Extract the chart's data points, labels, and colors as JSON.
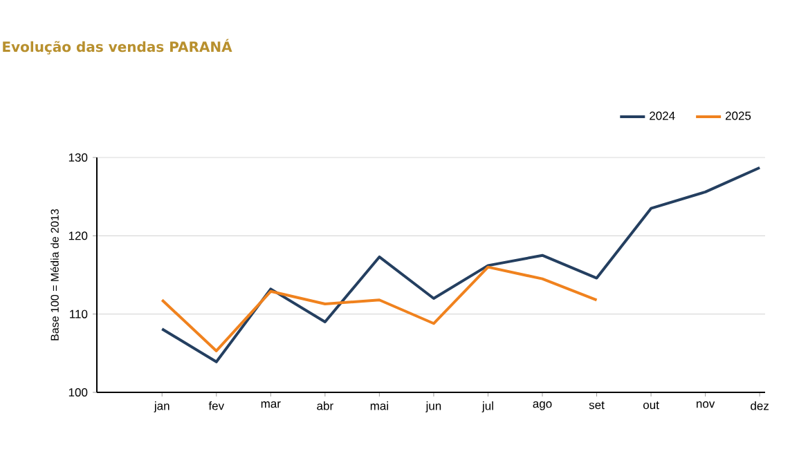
{
  "chart_data": {
    "type": "line",
    "title": "Evolução das vendas PARANÁ",
    "ylabel": "Base 100 = Média de 2013",
    "categories": [
      "jan",
      "fev",
      "mar",
      "abr",
      "mai",
      "jun",
      "jul",
      "ago",
      "set",
      "out",
      "nov",
      "dez"
    ],
    "series": [
      {
        "name": "2024",
        "color": "#243f60",
        "values": [
          108.1,
          103.9,
          113.2,
          109.0,
          117.3,
          112.0,
          116.2,
          117.5,
          114.6,
          123.5,
          125.6,
          128.7
        ]
      },
      {
        "name": "2025",
        "color": "#f0821e",
        "values": [
          111.8,
          105.3,
          112.9,
          111.3,
          111.8,
          108.8,
          116.0,
          114.5,
          111.8,
          null,
          null,
          null
        ]
      }
    ],
    "ylim": [
      100,
      130
    ],
    "yticks": [
      100,
      110,
      120,
      130
    ],
    "grid": "y",
    "legend": "top right",
    "marker": "none",
    "line_style": "solid"
  }
}
